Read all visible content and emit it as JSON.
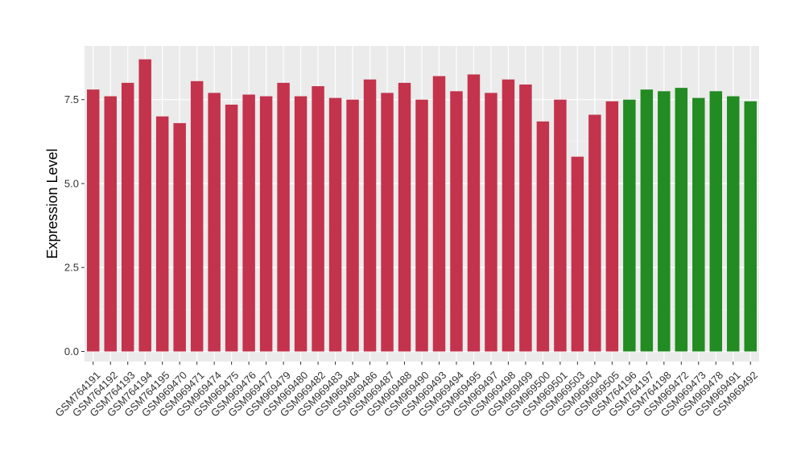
{
  "chart_data": {
    "type": "bar",
    "title": "",
    "xlabel": "",
    "ylabel": "Expression Level",
    "ylim": [
      -0.3,
      9.1
    ],
    "yticks": [
      0.0,
      2.5,
      5.0,
      7.5
    ],
    "ytick_labels": [
      "0.0",
      "2.5",
      "5.0",
      "7.5"
    ],
    "grid": true,
    "background": "#ebebeb",
    "categories": [
      "GSM764191",
      "GSM764192",
      "GSM764193",
      "GSM764194",
      "GSM764195",
      "GSM969470",
      "GSM969471",
      "GSM969474",
      "GSM969475",
      "GSM969476",
      "GSM969477",
      "GSM969479",
      "GSM969480",
      "GSM969482",
      "GSM969483",
      "GSM969484",
      "GSM969486",
      "GSM969487",
      "GSM969488",
      "GSM969490",
      "GSM969493",
      "GSM969494",
      "GSM969495",
      "GSM969497",
      "GSM969498",
      "GSM969499",
      "GSM969500",
      "GSM969501",
      "GSM969503",
      "GSM969504",
      "GSM969505",
      "GSM764196",
      "GSM764197",
      "GSM764198",
      "GSM969472",
      "GSM969473",
      "GSM969478",
      "GSM969491",
      "GSM969492"
    ],
    "values": [
      7.8,
      7.6,
      8.0,
      8.7,
      7.0,
      6.8,
      8.05,
      7.7,
      7.35,
      7.65,
      7.6,
      8.0,
      7.6,
      7.9,
      7.55,
      7.5,
      8.1,
      7.7,
      8.0,
      7.5,
      8.2,
      7.75,
      8.25,
      7.7,
      8.1,
      7.95,
      6.85,
      7.5,
      5.8,
      7.05,
      7.45,
      7.5,
      7.8,
      7.75,
      7.85,
      7.55,
      7.75,
      7.6,
      7.45
    ],
    "groups": [
      "a",
      "a",
      "a",
      "a",
      "a",
      "a",
      "a",
      "a",
      "a",
      "a",
      "a",
      "a",
      "a",
      "a",
      "a",
      "a",
      "a",
      "a",
      "a",
      "a",
      "a",
      "a",
      "a",
      "a",
      "a",
      "a",
      "a",
      "a",
      "a",
      "a",
      "a",
      "b",
      "b",
      "b",
      "b",
      "b",
      "b",
      "b",
      "b"
    ],
    "colors": {
      "a": "#c3334c",
      "b": "#228b22"
    }
  }
}
